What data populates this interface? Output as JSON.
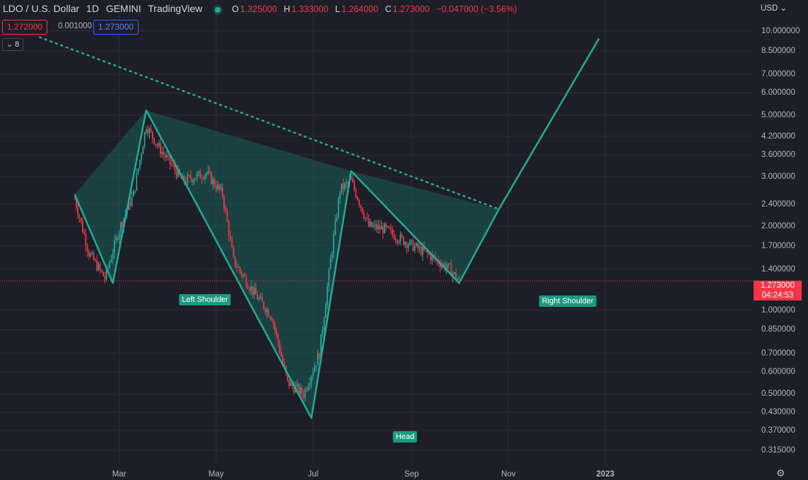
{
  "header": {
    "symbol": "LDO / U.S. Dollar",
    "interval": "1D",
    "exchange": "GEMINI",
    "source": "TradingView"
  },
  "ohlc": {
    "o_key": "O",
    "o_val": "1.325000",
    "h_key": "H",
    "h_val": "1.333000",
    "l_key": "L",
    "l_val": "1.264000",
    "c_key": "C",
    "c_val": "1.273000",
    "change": "−0.047000 (−3.56%)"
  },
  "trade": {
    "sell": "1.272000",
    "spread": "0.001000",
    "buy": "1.273000"
  },
  "indicators_toggle": "8",
  "price_axis": {
    "currency": "USD",
    "labels": [
      "10.000000",
      "8.500000",
      "7.000000",
      "6.000000",
      "5.000000",
      "4.200000",
      "3.600000",
      "3.000000",
      "2.400000",
      "2.000000",
      "1.700000",
      "1.400000",
      "1.000000",
      "0.850000",
      "0.700000",
      "0.600000",
      "0.500000",
      "0.430000",
      "0.370000",
      "0.315000"
    ]
  },
  "time_axis": {
    "labels": [
      "Mar",
      "May",
      "Jul",
      "Sep",
      "Nov",
      "2023"
    ]
  },
  "last_price": {
    "price": "1.273000",
    "countdown": "04:24:53"
  },
  "pattern_labels": {
    "left": "Left Shoulder",
    "head": "Head",
    "right": "Right Shoulder"
  },
  "colors": {
    "background": "#1e1e28",
    "up": "#26a69a",
    "down": "#f23645",
    "pattern": "#22ab94"
  },
  "chart_data": {
    "type": "candlestick",
    "title": "LDO / U.S. Dollar",
    "scale": "log",
    "ylim": [
      0.3,
      11
    ],
    "pattern": {
      "name": "Head and Shoulders (inverse)",
      "points": [
        {
          "date": "2022-02-01",
          "price": 2.6
        },
        {
          "date": "2022-02-25",
          "price": 1.25
        },
        {
          "date": "2022-03-18",
          "price": 5.2
        },
        {
          "date": "2022-06-30",
          "price": 0.41
        },
        {
          "date": "2022-07-25",
          "price": 3.15
        },
        {
          "date": "2022-10-01",
          "price": 1.25
        },
        {
          "date": "2022-10-26",
          "price": 2.3
        },
        {
          "date": "2022-12-28",
          "price": 9.4
        }
      ]
    },
    "price_path": [
      {
        "date": "2022-02-01",
        "close": 2.5
      },
      {
        "date": "2022-02-10",
        "close": 1.6
      },
      {
        "date": "2022-02-20",
        "close": 1.3
      },
      {
        "date": "2022-03-01",
        "close": 1.95
      },
      {
        "date": "2022-03-10",
        "close": 2.6
      },
      {
        "date": "2022-03-18",
        "close": 4.6
      },
      {
        "date": "2022-03-25",
        "close": 3.9
      },
      {
        "date": "2022-04-10",
        "close": 2.9
      },
      {
        "date": "2022-04-25",
        "close": 3.1
      },
      {
        "date": "2022-05-05",
        "close": 2.6
      },
      {
        "date": "2022-05-12",
        "close": 1.5
      },
      {
        "date": "2022-05-25",
        "close": 1.15
      },
      {
        "date": "2022-06-05",
        "close": 0.95
      },
      {
        "date": "2022-06-15",
        "close": 0.55
      },
      {
        "date": "2022-06-25",
        "close": 0.5
      },
      {
        "date": "2022-07-05",
        "close": 0.7
      },
      {
        "date": "2022-07-12",
        "close": 1.5
      },
      {
        "date": "2022-07-18",
        "close": 2.7
      },
      {
        "date": "2022-07-25",
        "close": 2.9
      },
      {
        "date": "2022-08-05",
        "close": 2.0
      },
      {
        "date": "2022-08-15",
        "close": 1.95
      },
      {
        "date": "2022-08-25",
        "close": 1.8
      },
      {
        "date": "2022-09-10",
        "close": 1.6
      },
      {
        "date": "2022-09-25",
        "close": 1.4
      },
      {
        "date": "2022-10-01",
        "close": 1.273
      }
    ],
    "trendline": {
      "from": {
        "date": "2022-01-10",
        "price": 9.5
      },
      "to": {
        "date": "2022-10-26",
        "price": 2.3
      }
    }
  }
}
